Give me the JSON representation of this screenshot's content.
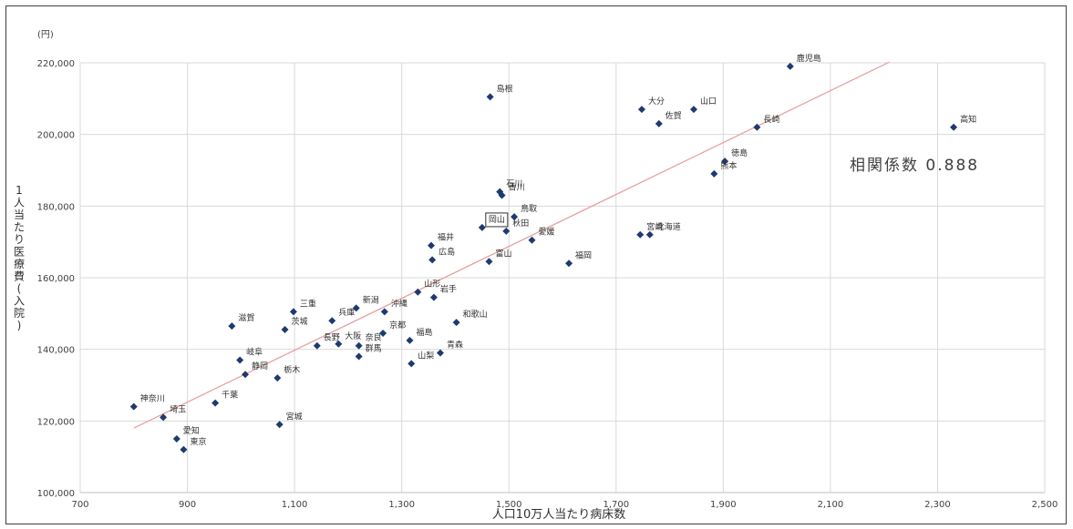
{
  "chart_data": {
    "type": "scatter",
    "title": "",
    "xlabel": "人口10万人当たり病床数",
    "ylabel": "1人当たり医療費(入院)",
    "yunit": "(円)",
    "xlim": [
      700,
      2500
    ],
    "ylim": [
      100000,
      220000
    ],
    "xticks": [
      700,
      900,
      1100,
      1300,
      1500,
      1700,
      1900,
      2100,
      2300,
      2500
    ],
    "yticks": [
      100000,
      120000,
      140000,
      160000,
      180000,
      200000,
      220000
    ],
    "xtick_labels": [
      "700",
      "900",
      "1,100",
      "1,300",
      "1,500",
      "1,700",
      "1,900",
      "2,100",
      "2,300",
      "2,500"
    ],
    "ytick_labels": [
      "100,000",
      "120,000",
      "140,000",
      "160,000",
      "180,000",
      "200,000",
      "220,000"
    ],
    "grid": true,
    "annotation": "相関係数 0.888",
    "highlighted_point": "岡山",
    "trendline": {
      "x": [
        800,
        2210
      ],
      "y": [
        118000,
        220200
      ]
    },
    "point_color": "#1f3a6e",
    "trendline_color": "#e8a0a0",
    "points": [
      {
        "name": "鹿児島",
        "x": 2025,
        "y": 219000
      },
      {
        "name": "島根",
        "x": 1465,
        "y": 210500
      },
      {
        "name": "大分",
        "x": 1748,
        "y": 207000
      },
      {
        "name": "山口",
        "x": 1845,
        "y": 207000
      },
      {
        "name": "佐賀",
        "x": 1780,
        "y": 203000
      },
      {
        "name": "長崎",
        "x": 1963,
        "y": 202000
      },
      {
        "name": "高知",
        "x": 2330,
        "y": 202000
      },
      {
        "name": "徳島",
        "x": 1903,
        "y": 192500
      },
      {
        "name": "熊本",
        "x": 1883,
        "y": 189000
      },
      {
        "name": "石川",
        "x": 1483,
        "y": 184000
      },
      {
        "name": "香川",
        "x": 1487,
        "y": 183000
      },
      {
        "name": "鳥取",
        "x": 1510,
        "y": 177000
      },
      {
        "name": "岡山",
        "x": 1450,
        "y": 174000
      },
      {
        "name": "秋田",
        "x": 1495,
        "y": 173000
      },
      {
        "name": "宮崎",
        "x": 1745,
        "y": 172000
      },
      {
        "name": "北海道",
        "x": 1763,
        "y": 172000
      },
      {
        "name": "愛媛",
        "x": 1543,
        "y": 170500
      },
      {
        "name": "福井",
        "x": 1355,
        "y": 169000
      },
      {
        "name": "広島",
        "x": 1357,
        "y": 165000
      },
      {
        "name": "富山",
        "x": 1463,
        "y": 164500
      },
      {
        "name": "福岡",
        "x": 1612,
        "y": 164000
      },
      {
        "name": "山形",
        "x": 1330,
        "y": 156000
      },
      {
        "name": "岩手",
        "x": 1360,
        "y": 154500
      },
      {
        "name": "新潟",
        "x": 1215,
        "y": 151500
      },
      {
        "name": "沖縄",
        "x": 1268,
        "y": 150500
      },
      {
        "name": "三重",
        "x": 1098,
        "y": 150500
      },
      {
        "name": "兵庫",
        "x": 1170,
        "y": 148000
      },
      {
        "name": "和歌山",
        "x": 1402,
        "y": 147500
      },
      {
        "name": "滋賀",
        "x": 983,
        "y": 146500
      },
      {
        "name": "茨城",
        "x": 1082,
        "y": 145500
      },
      {
        "name": "京都",
        "x": 1265,
        "y": 144500
      },
      {
        "name": "福島",
        "x": 1315,
        "y": 142500
      },
      {
        "name": "長野",
        "x": 1142,
        "y": 141000
      },
      {
        "name": "奈良",
        "x": 1220,
        "y": 141000
      },
      {
        "name": "青森",
        "x": 1372,
        "y": 139000
      },
      {
        "name": "大阪",
        "x": 1182,
        "y": 141500
      },
      {
        "name": "群馬",
        "x": 1220,
        "y": 138000
      },
      {
        "name": "岐阜",
        "x": 998,
        "y": 137000
      },
      {
        "name": "山梨",
        "x": 1318,
        "y": 136000
      },
      {
        "name": "静岡",
        "x": 1008,
        "y": 133000
      },
      {
        "name": "栃木",
        "x": 1068,
        "y": 132000
      },
      {
        "name": "千葉",
        "x": 952,
        "y": 125000
      },
      {
        "name": "神奈川",
        "x": 800,
        "y": 124000
      },
      {
        "name": "埼玉",
        "x": 855,
        "y": 121000
      },
      {
        "name": "宮城",
        "x": 1072,
        "y": 119000
      },
      {
        "name": "愛知",
        "x": 880,
        "y": 115000
      },
      {
        "name": "東京",
        "x": 893,
        "y": 112000
      }
    ]
  }
}
